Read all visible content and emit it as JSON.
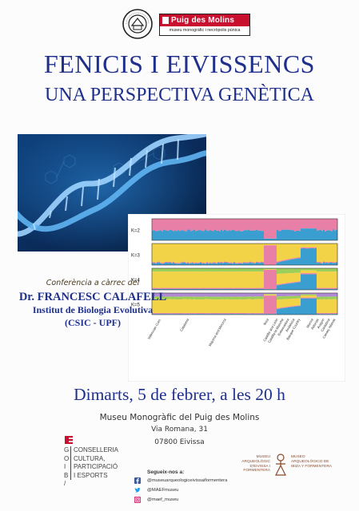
{
  "header": {
    "brand_name": "Puig des Molins",
    "brand_sub": "museu monogràfic i necròpolis púnica",
    "emblem_text": "PATRIMOINE MONDIAL • WORLD HERITAGE"
  },
  "title": "FENICIS I EIVISSENCS",
  "subtitle": "UNA PERSPECTIVA GENÈTICA",
  "speaker": {
    "intro": "Conferència a càrrec del",
    "name": "Dr. FRANCESC CALAFELL",
    "institute": "Institut de Biologia Evolutiva",
    "affiliation": "(CSIC - UPF)"
  },
  "chart_data": {
    "type": "area",
    "panels": [
      "K=2",
      "K=3",
      "K=4",
      "K=5"
    ],
    "x_labels": [
      "Valencian Com.",
      "Catalonia",
      "Majorca and Minorca",
      "Ibiza",
      "Castilla and León",
      "Castilla-la Mancha",
      "Extremadura",
      "Andalucia",
      "Basque Country",
      "Murcia",
      "Asturias",
      "Aragon",
      "Cantabria",
      "Canary Islands"
    ],
    "colors": [
      "#3a9fd0",
      "#e87fa6",
      "#f2d247",
      "#9ccf5a",
      "#b18ad6"
    ]
  },
  "event": {
    "date": "Dimarts, 5 de febrer, a les 20 h"
  },
  "venue": {
    "name": "Museu Monogràfic del Puig des Molins",
    "street": "Via Romana, 31",
    "city": "07800 Eivissa"
  },
  "government": {
    "letters": [
      "G",
      "O",
      "I",
      "B",
      "/"
    ],
    "lines": [
      "CONSELLERIA",
      "CULTURA,",
      "PARTICIPACIÓ",
      "I ESPORTS"
    ]
  },
  "social": {
    "heading": "Segueix-nos a:",
    "facebook": "@museuarqueologiceivissaiformentera",
    "twitter": "@MAEFmuseu",
    "instagram": "@maef_museu"
  },
  "museum": {
    "ca": "MUSEU ARQUEOLÒGIC D'EIVISSA I FORMENTERA",
    "es": "MUSEO ARQUEOLÓGICO DE IBIZA Y FORMENTERA"
  }
}
